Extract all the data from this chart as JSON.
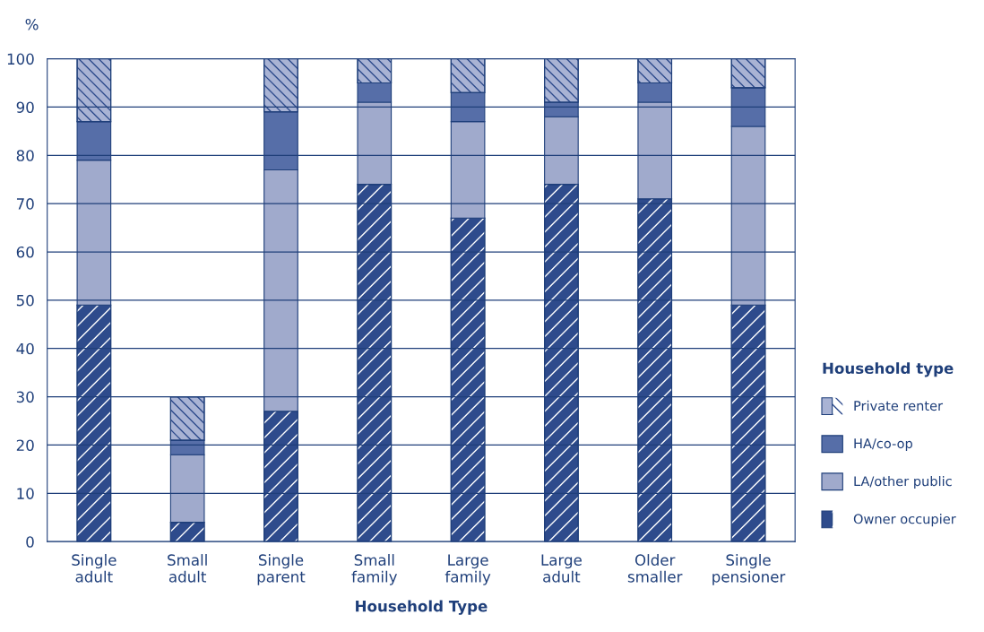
{
  "chart_data": {
    "type": "bar",
    "stacked": true,
    "xlabel": "Household Type",
    "ylabel": "%",
    "legend_title": "Household type",
    "categories": [
      "Single\nadult",
      "Small\nadult",
      "Single\nparent",
      "Small\nfamily",
      "Large\nfamily",
      "Large\nadult",
      "Older\nsmaller",
      "Single\npensioner"
    ],
    "series": [
      {
        "name": "Owner occupier",
        "color": "#2e4b8c",
        "values": [
          49,
          4,
          27,
          74,
          67,
          74,
          71,
          49
        ]
      },
      {
        "name": "LA/other public",
        "color": "#a0aacc",
        "values": [
          30,
          14,
          50,
          17,
          20,
          14,
          20,
          37
        ]
      },
      {
        "name": "HA/co-op",
        "color": "#566ea8",
        "values": [
          8,
          3,
          12,
          4,
          6,
          3,
          4,
          8
        ]
      },
      {
        "name": "Private renter",
        "color": "#a9b3d4",
        "values": [
          13,
          9,
          11,
          5,
          7,
          9,
          5,
          6
        ]
      }
    ],
    "ylim": [
      0,
      100
    ],
    "yticks": [
      0,
      10,
      20,
      30,
      40,
      50,
      60,
      70,
      80,
      90,
      100
    ],
    "grid": "y",
    "legend": "right"
  }
}
